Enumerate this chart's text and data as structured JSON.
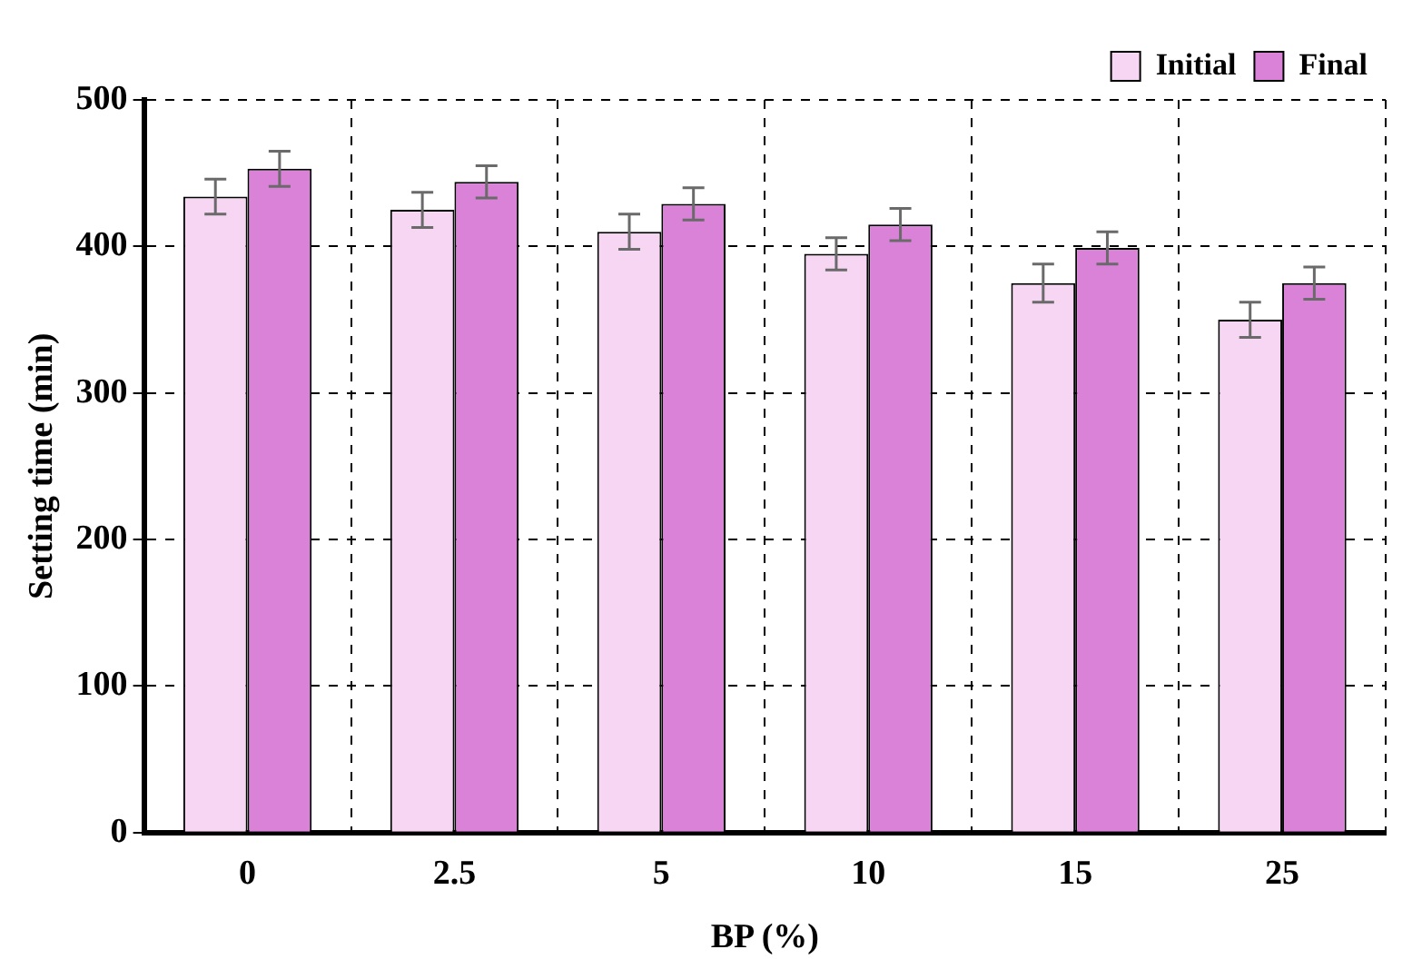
{
  "chart_data": {
    "type": "bar",
    "xlabel": "BP (%)",
    "ylabel": "Setting time (min)",
    "categories": [
      "0",
      "2.5",
      "5",
      "10",
      "15",
      "25"
    ],
    "series": [
      {
        "name": "Initial",
        "color": "#f6d6f2",
        "values": [
          434,
          425,
          410,
          395,
          375,
          350
        ],
        "errors": [
          12,
          12,
          12,
          11,
          13,
          12
        ]
      },
      {
        "name": "Final",
        "color": "#d982d8",
        "values": [
          453,
          444,
          429,
          415,
          399,
          375
        ],
        "errors": [
          12,
          11,
          11,
          11,
          11,
          11
        ]
      }
    ],
    "ylim": [
      0,
      500
    ],
    "yticks": [
      0,
      100,
      200,
      300,
      400,
      500
    ],
    "grid": true,
    "legend": "top right"
  }
}
